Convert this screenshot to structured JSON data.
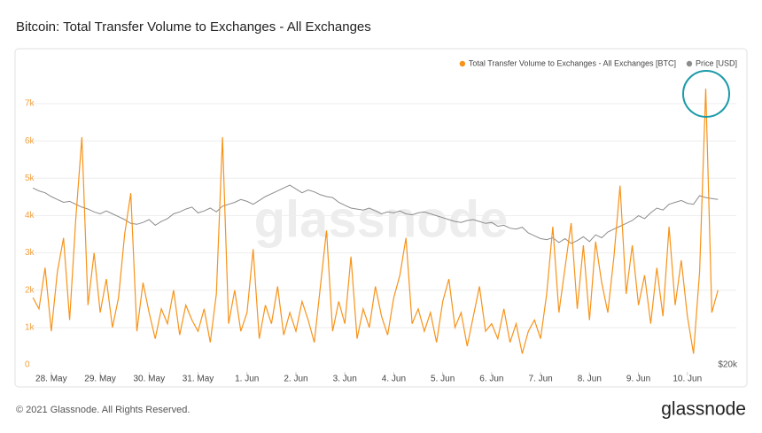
{
  "chart_data": {
    "type": "line",
    "title": "Bitcoin: Total Transfer Volume to Exchanges - All Exchanges",
    "footer": "© 2021 Glassnode. All Rights Reserved.",
    "brand": "glassnode",
    "xlim": [
      -0.45,
      14
    ],
    "xticks": [
      {
        "value": 0,
        "label": "28. May"
      },
      {
        "value": 1,
        "label": "29. May"
      },
      {
        "value": 2,
        "label": "30. May"
      },
      {
        "value": 3,
        "label": "31. May"
      },
      {
        "value": 4,
        "label": "1. Jun"
      },
      {
        "value": 5,
        "label": "2. Jun"
      },
      {
        "value": 6,
        "label": "3. Jun"
      },
      {
        "value": 7,
        "label": "4. Jun"
      },
      {
        "value": 8,
        "label": "5. Jun"
      },
      {
        "value": 9,
        "label": "6. Jun"
      },
      {
        "value": 10,
        "label": "7. Jun"
      },
      {
        "value": 11,
        "label": "8. Jun"
      },
      {
        "value": 12,
        "label": "9. Jun"
      },
      {
        "value": 13,
        "label": "10. Jun"
      }
    ],
    "ylim": [
      0,
      8400
    ],
    "yticks": [
      0,
      {
        "value": 1000,
        "label": "1k"
      },
      {
        "value": 2000,
        "label": "2k"
      },
      {
        "value": 3000,
        "label": "3k"
      },
      {
        "value": 4000,
        "label": "4k"
      },
      {
        "value": 5000,
        "label": "5k"
      },
      {
        "value": 6000,
        "label": "6k"
      },
      {
        "value": 7000,
        "label": "7k"
      }
    ],
    "y2lim": [
      20000,
      52800
    ],
    "y2ticks": [
      {
        "value": 20000,
        "label": "$20k"
      }
    ],
    "grid": true,
    "legend": "top-right",
    "x": [
      -0.375,
      -0.25,
      -0.125,
      0,
      0.125,
      0.25,
      0.375,
      0.5,
      0.625,
      0.75,
      0.875,
      1,
      1.125,
      1.25,
      1.375,
      1.5,
      1.625,
      1.75,
      1.875,
      2,
      2.125,
      2.25,
      2.375,
      2.5,
      2.625,
      2.75,
      2.875,
      3,
      3.125,
      3.25,
      3.375,
      3.5,
      3.625,
      3.75,
      3.875,
      4,
      4.125,
      4.25,
      4.375,
      4.5,
      4.625,
      4.75,
      4.875,
      5,
      5.125,
      5.25,
      5.375,
      5.5,
      5.625,
      5.75,
      5.875,
      6,
      6.125,
      6.25,
      6.375,
      6.5,
      6.625,
      6.75,
      6.875,
      7,
      7.125,
      7.25,
      7.375,
      7.5,
      7.625,
      7.75,
      7.875,
      8,
      8.125,
      8.25,
      8.375,
      8.5,
      8.625,
      8.75,
      8.875,
      9,
      9.125,
      9.25,
      9.375,
      9.5,
      9.625,
      9.75,
      9.875,
      10,
      10.125,
      10.25,
      10.375,
      10.5,
      10.625,
      10.75,
      10.875,
      11,
      11.125,
      11.25,
      11.375,
      11.5,
      11.625,
      11.75,
      11.875,
      12,
      12.125,
      12.25,
      12.375,
      12.5,
      12.625,
      12.75,
      12.875,
      13,
      13.125,
      13.25,
      13.375,
      13.5,
      13.625
    ],
    "series": [
      {
        "name": "Total Transfer Volume to Exchanges - All Exchanges [BTC]",
        "color": "#f7931a",
        "values": [
          1800,
          1500,
          2600,
          900,
          2500,
          3400,
          1200,
          3900,
          6100,
          1600,
          3000,
          1400,
          2300,
          1000,
          1800,
          3500,
          4600,
          900,
          2200,
          1400,
          700,
          1500,
          1100,
          2000,
          800,
          1600,
          1200,
          900,
          1500,
          600,
          1900,
          6100,
          1100,
          2000,
          900,
          1400,
          3100,
          700,
          1600,
          1100,
          2100,
          800,
          1400,
          900,
          1700,
          1200,
          600,
          2100,
          3600,
          900,
          1700,
          1100,
          2900,
          700,
          1500,
          1000,
          2100,
          1300,
          800,
          1800,
          2400,
          3400,
          1100,
          1500,
          900,
          1400,
          600,
          1700,
          2300,
          1000,
          1400,
          500,
          1300,
          2100,
          900,
          1100,
          700,
          1500,
          600,
          1100,
          300,
          900,
          1200,
          700,
          1900,
          3700,
          1400,
          2600,
          3800,
          1500,
          3200,
          1200,
          3300,
          2200,
          1400,
          2900,
          4800,
          1900,
          3200,
          1600,
          2400,
          1100,
          2600,
          1300,
          3700,
          1600,
          2800,
          1300,
          300,
          2500,
          7400,
          1400,
          2000
        ]
      },
      {
        "name": "Price [USD]",
        "color": "#8c8c8c",
        "axis": "y2",
        "values": [
          38500,
          38200,
          38000,
          37600,
          37300,
          37000,
          37100,
          36800,
          36500,
          36300,
          36000,
          35800,
          36100,
          35800,
          35500,
          35200,
          34800,
          34700,
          34900,
          35200,
          34600,
          35000,
          35300,
          35800,
          36000,
          36300,
          36500,
          35900,
          36100,
          36400,
          36000,
          36600,
          36800,
          37000,
          37300,
          37100,
          36800,
          37200,
          37600,
          37900,
          38200,
          38500,
          38800,
          38400,
          38000,
          38300,
          38100,
          37800,
          37600,
          37500,
          37000,
          36700,
          36400,
          36300,
          36200,
          36400,
          36100,
          35800,
          36000,
          35900,
          36100,
          35800,
          35700,
          35900,
          36000,
          35800,
          35600,
          35400,
          35200,
          35000,
          34900,
          35100,
          35200,
          35000,
          34800,
          34900,
          34500,
          34600,
          34300,
          34200,
          34400,
          33800,
          33500,
          33200,
          33100,
          33300,
          32800,
          33200,
          32700,
          33000,
          33400,
          32900,
          33600,
          33300,
          33900,
          34200,
          34500,
          34800,
          35100,
          35600,
          35300,
          35900,
          36400,
          36200,
          36800,
          37000,
          37200,
          36900,
          36800,
          37700,
          37500,
          37400,
          37300
        ]
      }
    ]
  }
}
